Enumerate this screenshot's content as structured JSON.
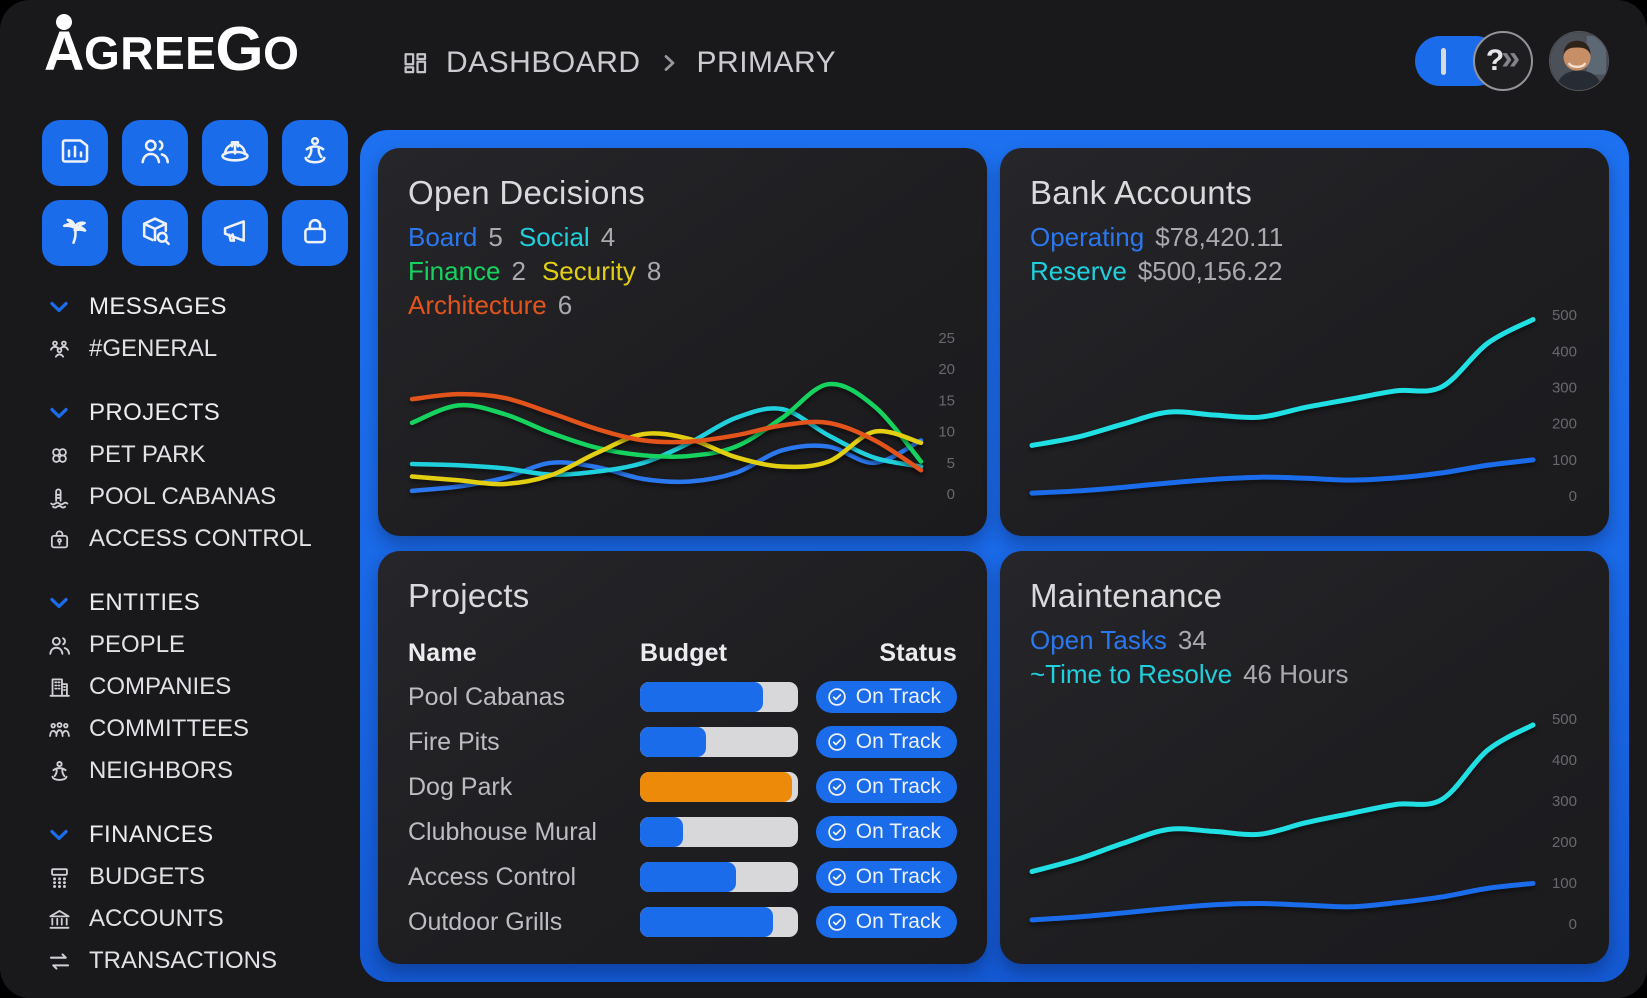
{
  "brand": {
    "name": "AGREEGO"
  },
  "colors": {
    "accent_blue": "#1a6ceb",
    "page_bg": "#19191b",
    "card_bg": "#202024",
    "track_gray": "#d8d8da",
    "bar_orange": "#ee8a0a",
    "stat_blue": "#2b77ee",
    "stat_cyan": "#20d0dc",
    "stat_green": "#16d35f",
    "stat_yellow": "#e3cf12",
    "stat_orange": "#e2541b"
  },
  "header": {
    "breadcrumb": {
      "icon": "layout-grid-icon",
      "separator_icon": "chevron-right-icon",
      "items": [
        "DASHBOARD",
        "PRIMARY"
      ]
    },
    "collapse_toggle": {
      "bar_glyph": "|",
      "help_glyph": "?",
      "chevrons_glyph": "»"
    },
    "avatar_icon": "user-photo-avatar"
  },
  "quick_actions": [
    {
      "name": "reports",
      "icon": "chart-report-icon"
    },
    {
      "name": "people",
      "icon": "people-icon"
    },
    {
      "name": "construction",
      "icon": "hard-hat-icon"
    },
    {
      "name": "neighbors",
      "icon": "neighbor-icon"
    },
    {
      "name": "amenities",
      "icon": "palm-tree-icon"
    },
    {
      "name": "package-search",
      "icon": "package-search-icon"
    },
    {
      "name": "announcements",
      "icon": "megaphone-icon"
    },
    {
      "name": "security",
      "icon": "padlock-icon"
    }
  ],
  "sidebar": {
    "sections": [
      {
        "label": "MESSAGES",
        "chevron_icon": "chevron-down-icon",
        "items": [
          {
            "label": "#GENERAL",
            "icon": "group-chat-icon"
          }
        ]
      },
      {
        "label": "PROJECTS",
        "chevron_icon": "chevron-down-icon",
        "items": [
          {
            "label": "PET PARK",
            "icon": "crossed-bones-icon"
          },
          {
            "label": "POOL CABANAS",
            "icon": "pool-ladder-icon"
          },
          {
            "label": "ACCESS CONTROL",
            "icon": "lock-case-icon"
          }
        ]
      },
      {
        "label": "ENTITIES",
        "chevron_icon": "chevron-down-icon",
        "items": [
          {
            "label": "PEOPLE",
            "icon": "people-icon"
          },
          {
            "label": "COMPANIES",
            "icon": "building-icon"
          },
          {
            "label": "COMMITTEES",
            "icon": "committee-icon"
          },
          {
            "label": "NEIGHBORS",
            "icon": "neighbor-icon"
          }
        ]
      },
      {
        "label": "FINANCES",
        "chevron_icon": "chevron-down-icon",
        "items": [
          {
            "label": "BUDGETS",
            "icon": "budget-grid-icon"
          },
          {
            "label": "ACCOUNTS",
            "icon": "bank-icon"
          },
          {
            "label": "TRANSACTIONS",
            "icon": "transfer-arrows-icon"
          }
        ]
      }
    ]
  },
  "cards": {
    "open_decisions": {
      "title": "Open Decisions",
      "stats": [
        {
          "label": "Board",
          "value": "5",
          "color": "#2b77ee"
        },
        {
          "label": "Social",
          "value": "4",
          "color": "#20d0dc"
        },
        {
          "label": "Finance",
          "value": "2",
          "color": "#16d35f"
        },
        {
          "label": "Security",
          "value": "8",
          "color": "#e3cf12"
        },
        {
          "label": "Architecture",
          "value": "6",
          "color": "#e2541b"
        }
      ]
    },
    "bank_accounts": {
      "title": "Bank Accounts",
      "stats": [
        {
          "label": "Operating",
          "value": "$78,420.11",
          "color": "#2b77ee"
        },
        {
          "label": "Reserve",
          "value": "$500,156.22",
          "color": "#20d0dc"
        }
      ]
    },
    "projects": {
      "title": "Projects",
      "columns": [
        "Name",
        "Budget",
        "Status"
      ],
      "rows": [
        {
          "name": "Pool Cabanas",
          "progress": 78,
          "bar_color": "#1a6ceb",
          "status": "On Track",
          "status_icon": "check-circle-icon"
        },
        {
          "name": "Fire Pits",
          "progress": 42,
          "bar_color": "#1a6ceb",
          "status": "On Track",
          "status_icon": "check-circle-icon"
        },
        {
          "name": "Dog Park",
          "progress": 96,
          "bar_color": "#ee8a0a",
          "status": "On Track",
          "status_icon": "check-circle-icon"
        },
        {
          "name": "Clubhouse Mural",
          "progress": 27,
          "bar_color": "#1a6ceb",
          "status": "On Track",
          "status_icon": "check-circle-icon"
        },
        {
          "name": "Access Control",
          "progress": 61,
          "bar_color": "#1a6ceb",
          "status": "On Track",
          "status_icon": "check-circle-icon"
        },
        {
          "name": "Outdoor Grills",
          "progress": 84,
          "bar_color": "#1a6ceb",
          "status": "On Track",
          "status_icon": "check-circle-icon"
        }
      ]
    },
    "maintenance": {
      "title": "Maintenance",
      "stats": [
        {
          "label": "Open Tasks",
          "value": "34",
          "color": "#2b77ee"
        },
        {
          "label": "~Time to Resolve",
          "value": "46 Hours",
          "color": "#20d0dc"
        }
      ]
    }
  },
  "chart_data": [
    {
      "id": "open_decisions",
      "type": "line",
      "title": "Open Decisions",
      "xlabel": "",
      "ylabel": "",
      "ylim": [
        0,
        25
      ],
      "yticks": [
        25,
        20,
        15,
        10,
        5,
        0
      ],
      "grid": false,
      "legend_position": "none",
      "x": [
        0,
        1,
        2,
        3,
        4,
        5,
        6,
        7,
        8,
        9,
        10,
        11
      ],
      "series": [
        {
          "name": "Board",
          "color": "#2b77ee",
          "values": [
            0.5,
            1.2,
            2.6,
            5.0,
            4.3,
            2.4,
            2.0,
            3.4,
            7.0,
            7.6,
            5.0,
            8.6
          ]
        },
        {
          "name": "Social",
          "color": "#20d0dc",
          "values": [
            4.8,
            4.6,
            4.1,
            3.1,
            3.6,
            5.0,
            8.2,
            12.2,
            13.6,
            9.4,
            5.8,
            4.4
          ]
        },
        {
          "name": "Finance",
          "color": "#16d35f",
          "values": [
            11.4,
            14.2,
            12.8,
            9.8,
            7.4,
            6.2,
            6.1,
            7.6,
            12.2,
            17.6,
            14.0,
            5.2
          ]
        },
        {
          "name": "Security",
          "color": "#e3cf12",
          "values": [
            2.8,
            2.2,
            1.6,
            3.0,
            6.6,
            9.6,
            8.8,
            5.9,
            4.4,
            5.2,
            10.0,
            8.2
          ]
        },
        {
          "name": "Architecture",
          "color": "#e2541b",
          "values": [
            15.2,
            16.0,
            15.4,
            13.0,
            10.4,
            8.6,
            8.4,
            9.4,
            11.0,
            11.4,
            8.6,
            3.8
          ]
        }
      ]
    },
    {
      "id": "bank_accounts",
      "type": "line",
      "title": "Bank Accounts",
      "xlabel": "",
      "ylabel": "",
      "ylim": [
        0,
        520
      ],
      "yticks": [
        500,
        400,
        300,
        200,
        100,
        0
      ],
      "grid": false,
      "legend_position": "none",
      "x": [
        0,
        1,
        2,
        3,
        4,
        5,
        6,
        7,
        8,
        9,
        10,
        11
      ],
      "series": [
        {
          "name": "Reserve",
          "color": "#20e0e4",
          "values": [
            140,
            163,
            199,
            232,
            224,
            218,
            245,
            268,
            291,
            302,
            422,
            488
          ]
        },
        {
          "name": "Operating",
          "color": "#1a6ceb",
          "values": [
            8,
            14,
            24,
            36,
            46,
            52,
            49,
            44,
            50,
            64,
            85,
            100
          ]
        }
      ]
    },
    {
      "id": "maintenance",
      "type": "line",
      "title": "Maintenance",
      "xlabel": "",
      "ylabel": "",
      "ylim": [
        0,
        520
      ],
      "yticks": [
        500,
        400,
        300,
        200,
        100,
        0
      ],
      "grid": false,
      "legend_position": "none",
      "x": [
        0,
        1,
        2,
        3,
        4,
        5,
        6,
        7,
        8,
        9,
        10,
        11
      ],
      "series": [
        {
          "name": "series_1",
          "color": "#20e0e4",
          "values": [
            128,
            158,
            197,
            231,
            226,
            219,
            247,
            270,
            292,
            304,
            424,
            486
          ]
        },
        {
          "name": "series_2",
          "color": "#1a6ceb",
          "values": [
            10,
            17,
            27,
            38,
            47,
            50,
            46,
            42,
            52,
            66,
            87,
            99
          ]
        }
      ]
    }
  ]
}
